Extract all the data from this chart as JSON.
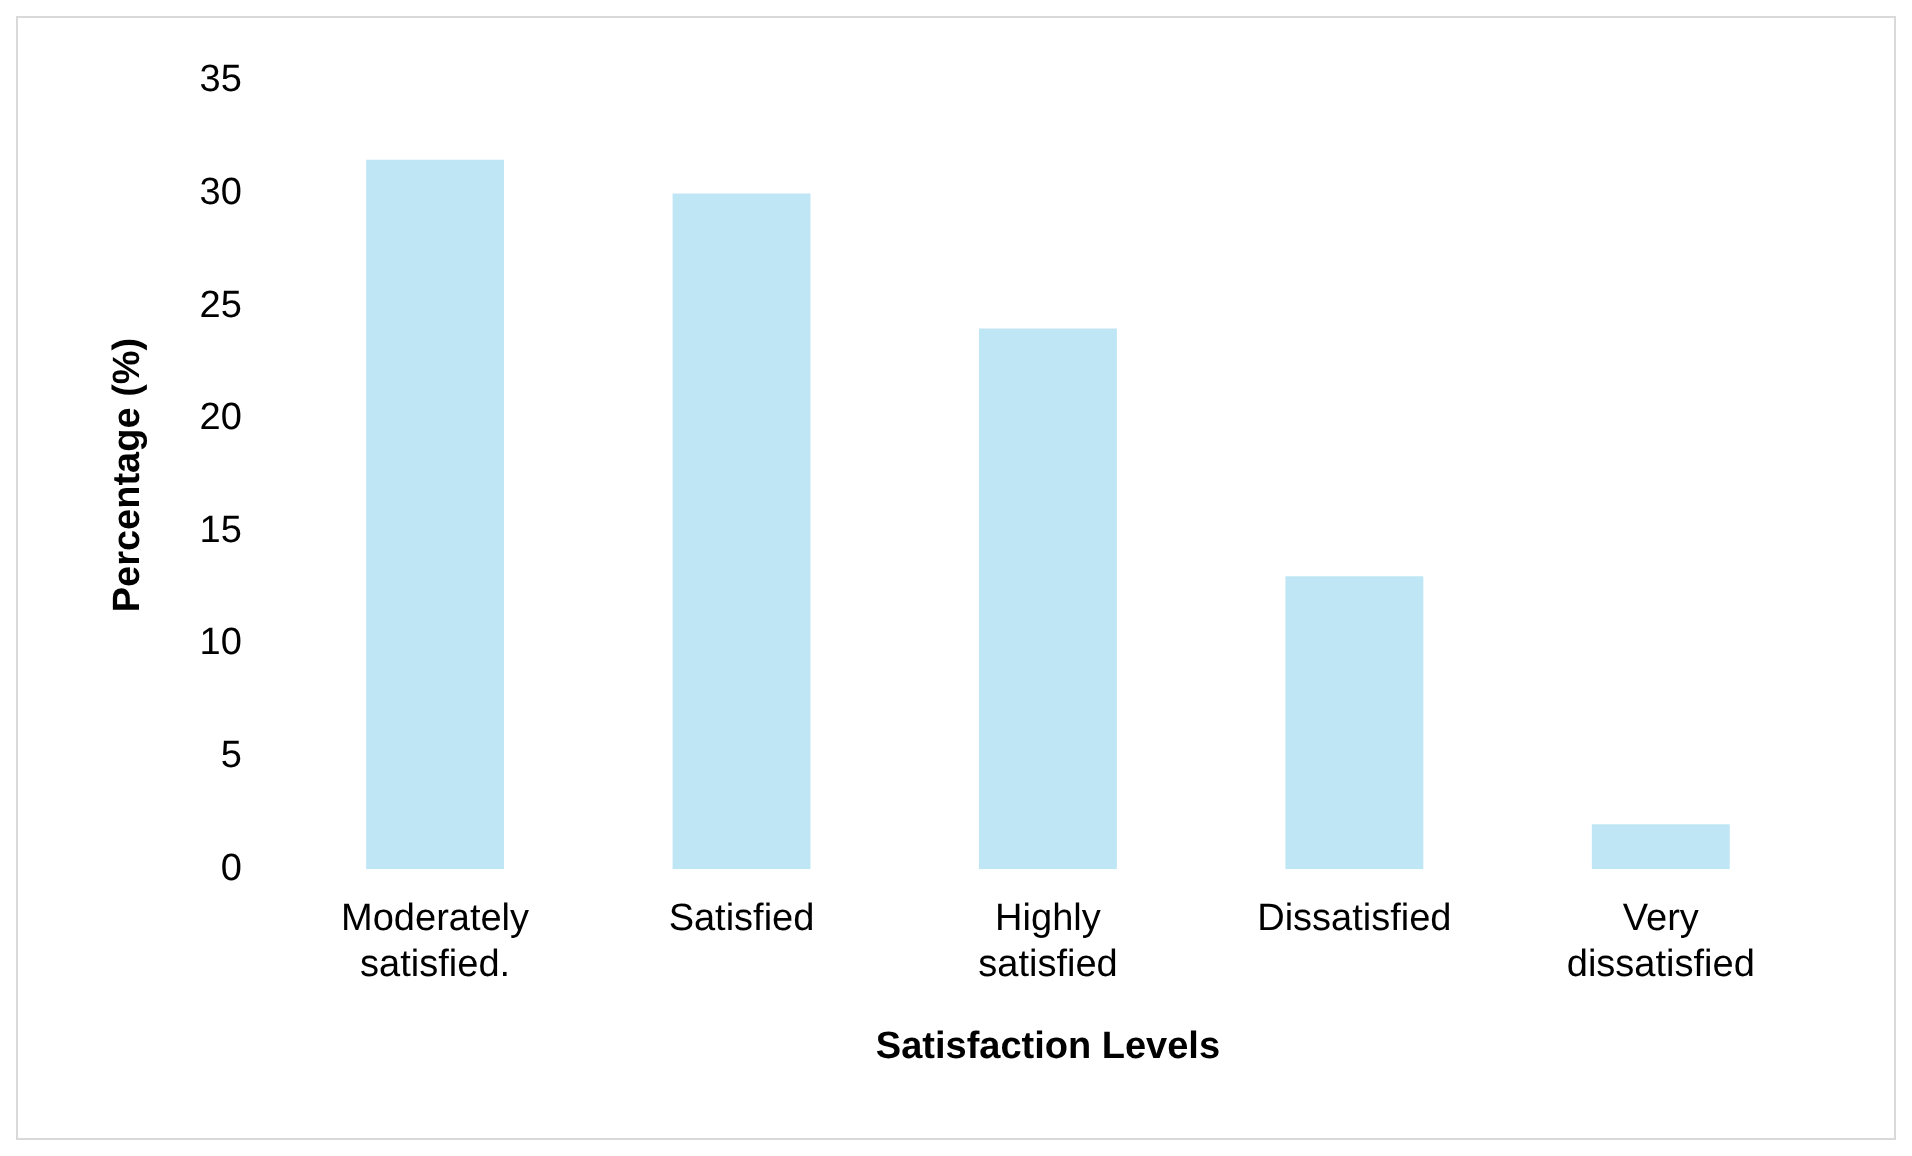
{
  "chart_data": {
    "type": "bar",
    "xlabel": "Satisfaction Levels",
    "ylabel": "Percentage (%)",
    "categories": [
      "Moderately satisfied.",
      "Satisfied",
      "Highly satisfied",
      "Dissatisfied",
      "Very dissatisfied"
    ],
    "values": [
      31.5,
      30,
      24,
      13,
      2
    ],
    "color": "#bfe6f5",
    "ylim": [
      0,
      35
    ],
    "yticks": [
      0,
      5,
      10,
      15,
      20,
      25,
      30,
      35
    ],
    "grid": false,
    "legend": false
  }
}
